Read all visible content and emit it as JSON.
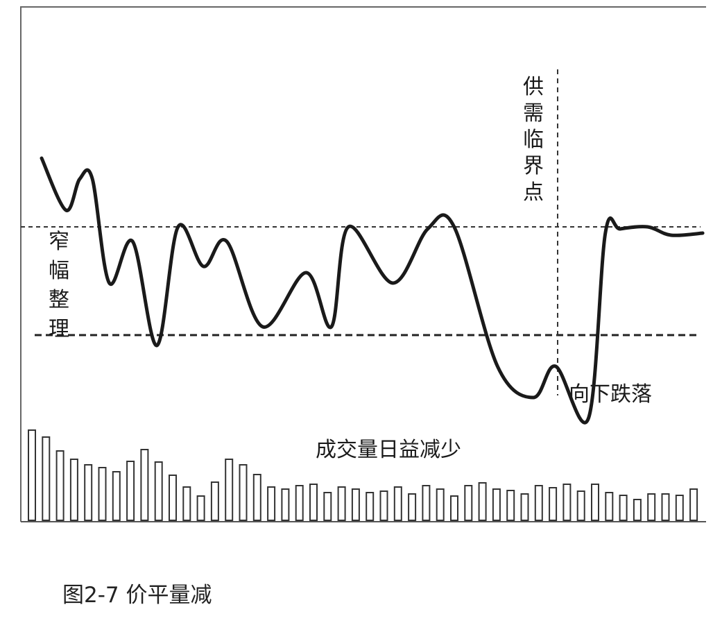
{
  "caption": "图2-7 价平量减",
  "chart_data": {
    "type": "line",
    "title": "",
    "annotations": {
      "narrow_range": "窄幅整理",
      "critical_point": "供需临界点",
      "fall_down": "向下跌落",
      "volume_decline": "成交量日益减少"
    },
    "price_series": {
      "x": [
        0,
        2.3,
        3.6,
        4.8,
        6.4,
        8.6,
        10.9,
        12.9,
        15.3,
        17.5,
        20.9,
        25.0,
        27.4,
        29.0,
        33.2,
        36.5,
        39.0,
        43.1,
        46.5,
        48.6,
        51.7,
        53.3,
        54.7,
        57.3,
        59.5,
        62.5
      ],
      "y": [
        85,
        60,
        75,
        75,
        25,
        45,
        -5,
        52,
        33,
        45,
        4,
        30,
        4,
        52,
        25,
        51,
        52,
        -15,
        -30,
        -15,
        -40,
        49,
        51,
        52,
        48,
        49
      ]
    },
    "reference_lines": {
      "upper": 52,
      "lower": 0
    },
    "volume_series": {
      "values": [
        130,
        120,
        100,
        88,
        80,
        76,
        70,
        85,
        102,
        84,
        65,
        48,
        35,
        55,
        88,
        80,
        66,
        48,
        45,
        50,
        52,
        40,
        48,
        45,
        40,
        42,
        48,
        38,
        50,
        45,
        35,
        50,
        54,
        45,
        43,
        38,
        50,
        47,
        52,
        42,
        52,
        40,
        36,
        30,
        38,
        38,
        36,
        45
      ]
    }
  }
}
